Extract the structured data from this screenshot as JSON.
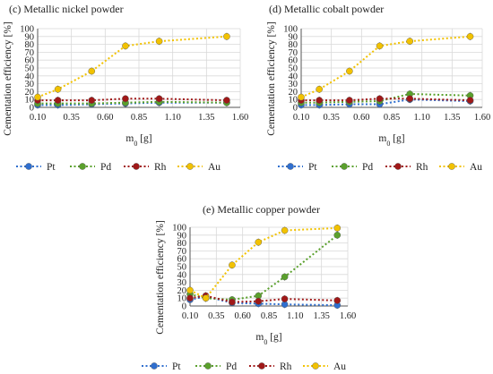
{
  "colors": {
    "Pt": "#2f6fcf",
    "Pd": "#5aa02c",
    "Rh": "#a01818",
    "Au": "#f2c200",
    "grid": "#d9d9d9",
    "axis": "#555555"
  },
  "chart_data": [
    {
      "type": "line",
      "title": "(c) Metallic nickel powder",
      "xlabel": "m0 [g]",
      "xlabel_main": "m",
      "xlabel_sub": "0",
      "xlabel_rest": " [g]",
      "ylabel": "Cementation efficiency [%]",
      "xlim": [
        0.1,
        1.6
      ],
      "ylim": [
        0,
        100
      ],
      "xticks": [
        "0.10",
        "0.35",
        "0.60",
        "0.85",
        "1.10",
        "1.35",
        "1.60"
      ],
      "yticks": [
        "0",
        "10",
        "20",
        "30",
        "40",
        "50",
        "60",
        "70",
        "80",
        "90",
        "100"
      ],
      "grid": true,
      "legend": "bottom",
      "x": [
        0.1,
        0.25,
        0.5,
        0.75,
        1.0,
        1.5
      ],
      "series": [
        {
          "name": "Pt",
          "values": [
            3,
            3,
            4,
            5,
            6,
            6
          ]
        },
        {
          "name": "Pd",
          "values": [
            5,
            5,
            5,
            6,
            7,
            6
          ]
        },
        {
          "name": "Rh",
          "values": [
            9,
            9,
            9,
            11,
            11,
            9
          ]
        },
        {
          "name": "Au",
          "values": [
            13,
            23,
            46,
            78,
            84,
            90
          ]
        }
      ]
    },
    {
      "type": "line",
      "title": "(d) Metallic cobalt powder",
      "xlabel": "m0 [g]",
      "xlabel_main": "m",
      "xlabel_sub": "0",
      "xlabel_rest": " [g]",
      "ylabel": "Cementation efficiency [%]",
      "xlim": [
        0.1,
        1.6
      ],
      "ylim": [
        0,
        100
      ],
      "xticks": [
        "0.10",
        "0.35",
        "0.60",
        "0.85",
        "1.10",
        "1.35",
        "1.60"
      ],
      "yticks": [
        "0",
        "10",
        "20",
        "30",
        "40",
        "50",
        "60",
        "70",
        "80",
        "90",
        "100"
      ],
      "grid": true,
      "legend": "bottom",
      "x": [
        0.1,
        0.25,
        0.5,
        0.75,
        1.0,
        1.5
      ],
      "series": [
        {
          "name": "Pt",
          "values": [
            3,
            3,
            4,
            4,
            10,
            8
          ]
        },
        {
          "name": "Pd",
          "values": [
            6,
            6,
            7,
            8,
            17,
            15
          ]
        },
        {
          "name": "Rh",
          "values": [
            9,
            9,
            9,
            11,
            11,
            9
          ]
        },
        {
          "name": "Au",
          "values": [
            13,
            23,
            46,
            78,
            84,
            90
          ]
        }
      ]
    },
    {
      "type": "line",
      "title": "(e) Metallic copper powder",
      "xlabel": "m0 [g]",
      "xlabel_main": "m",
      "xlabel_sub": "0",
      "xlabel_rest": " [g]",
      "ylabel": "Cementation efficiency [%]",
      "xlim": [
        0.1,
        1.6
      ],
      "ylim": [
        0,
        100
      ],
      "xticks": [
        "0.10",
        "0.35",
        "0.60",
        "0.85",
        "1.10",
        "1.35",
        "1.60"
      ],
      "yticks": [
        "0",
        "10",
        "20",
        "30",
        "40",
        "50",
        "60",
        "70",
        "80",
        "90",
        "100"
      ],
      "grid": true,
      "legend": "bottom",
      "x": [
        0.1,
        0.25,
        0.5,
        0.75,
        1.0,
        1.5
      ],
      "series": [
        {
          "name": "Pt",
          "values": [
            8,
            12,
            4,
            3,
            2,
            1
          ]
        },
        {
          "name": "Pd",
          "values": [
            15,
            10,
            8,
            13,
            37,
            90
          ]
        },
        {
          "name": "Rh",
          "values": [
            10,
            13,
            5,
            6,
            9,
            7
          ]
        },
        {
          "name": "Au",
          "values": [
            20,
            10,
            52,
            81,
            96,
            99
          ]
        }
      ]
    }
  ]
}
